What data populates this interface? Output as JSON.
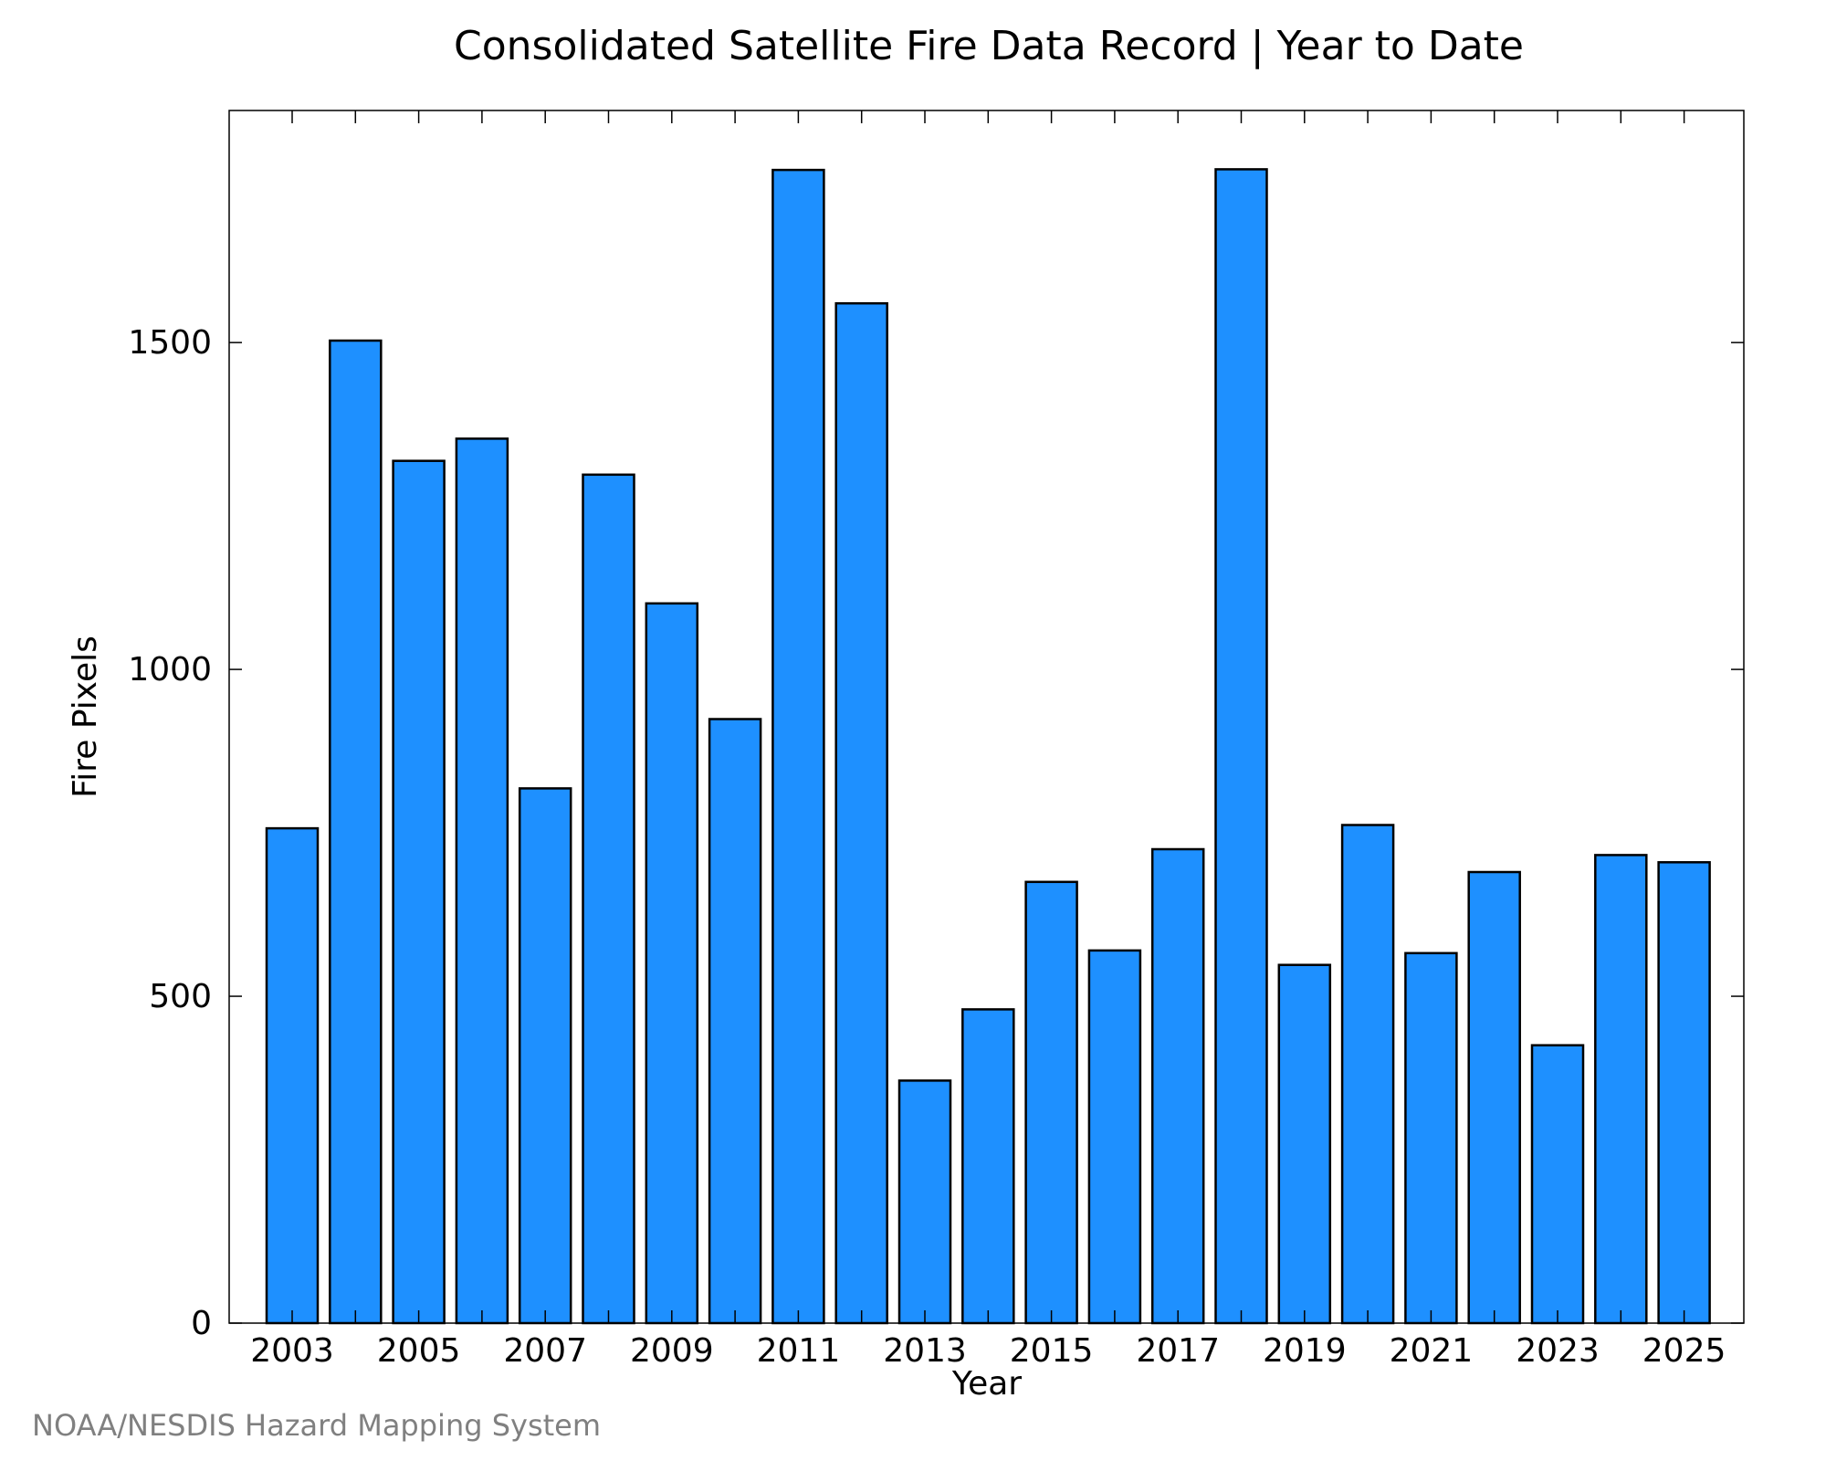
{
  "chart_data": {
    "type": "bar",
    "title": "Consolidated Satellite Fire Data Record | Year to Date",
    "xlabel": "Year",
    "ylabel": "Fire Pixels",
    "categories": [
      "2003",
      "2004",
      "2005",
      "2006",
      "2007",
      "2008",
      "2009",
      "2010",
      "2011",
      "2012",
      "2013",
      "2014",
      "2015",
      "2016",
      "2017",
      "2018",
      "2019",
      "2020",
      "2021",
      "2022",
      "2023",
      "2024",
      "2025"
    ],
    "values": [
      757,
      1503,
      1319,
      1353,
      818,
      1298,
      1101,
      924,
      1764,
      1560,
      371,
      480,
      675,
      570,
      725,
      1765,
      548,
      762,
      566,
      690,
      425,
      716,
      705
    ],
    "x_tick_labels": [
      "2003",
      "2005",
      "2007",
      "2009",
      "2011",
      "2013",
      "2015",
      "2017",
      "2019",
      "2021",
      "2023",
      "2025"
    ],
    "y_ticks": [
      0,
      500,
      1000,
      1500
    ],
    "y_tick_labels": [
      "0",
      "500",
      "1000",
      "1500"
    ],
    "ylim": [
      0,
      1855
    ],
    "bar_color": "#1e90ff",
    "bar_edge_color": "#000000",
    "grid": false,
    "legend": "none",
    "credit": "NOAA/NESDIS Hazard Mapping System"
  }
}
